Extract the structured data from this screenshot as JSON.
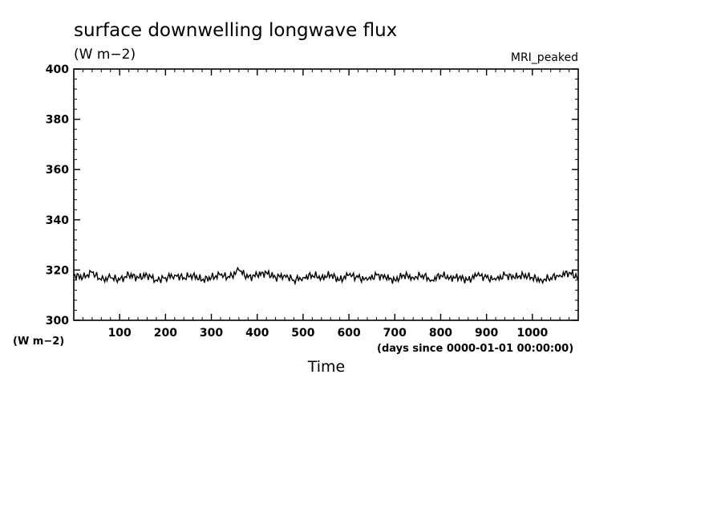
{
  "chart_data": {
    "type": "line",
    "title": "surface downwelling longwave flux",
    "title_units": "(W m−2)",
    "model_label": "MRI_peaked",
    "ylabel_units": "(W m−2)",
    "xlabel": "Time",
    "x_units_note": "(days since 0000-01-01 00:00:00)",
    "xlim": [
      0,
      1100
    ],
    "ylim": [
      300,
      400
    ],
    "x_ticks": [
      100,
      200,
      300,
      400,
      500,
      600,
      700,
      800,
      900,
      1000
    ],
    "y_ticks": [
      300,
      320,
      340,
      360,
      380,
      400
    ],
    "line_color": "#000000",
    "grid": false,
    "series": [
      {
        "x": [
          0,
          20,
          40,
          60,
          80,
          100,
          120,
          140,
          160,
          180,
          200,
          220,
          240,
          260,
          280,
          300,
          320,
          340,
          360,
          380,
          400,
          420,
          440,
          460,
          480,
          500,
          520,
          540,
          560,
          580,
          600,
          620,
          640,
          660,
          680,
          700,
          720,
          740,
          760,
          780,
          800,
          820,
          840,
          860,
          880,
          900,
          920,
          940,
          960,
          980,
          1000,
          1020,
          1040,
          1060,
          1080,
          1100
        ],
        "values": [
          318,
          317,
          319,
          316,
          317,
          316,
          318,
          317,
          318,
          316,
          317,
          318,
          317,
          318,
          316,
          317,
          318,
          317,
          320,
          317,
          318,
          319,
          317,
          318,
          316,
          317,
          318,
          317,
          318,
          316,
          318,
          317,
          316,
          318,
          317,
          316,
          318,
          317,
          318,
          316,
          318,
          317,
          317,
          316,
          318,
          317,
          316,
          318,
          317,
          318,
          317,
          316,
          317,
          318,
          319,
          317
        ]
      }
    ]
  }
}
